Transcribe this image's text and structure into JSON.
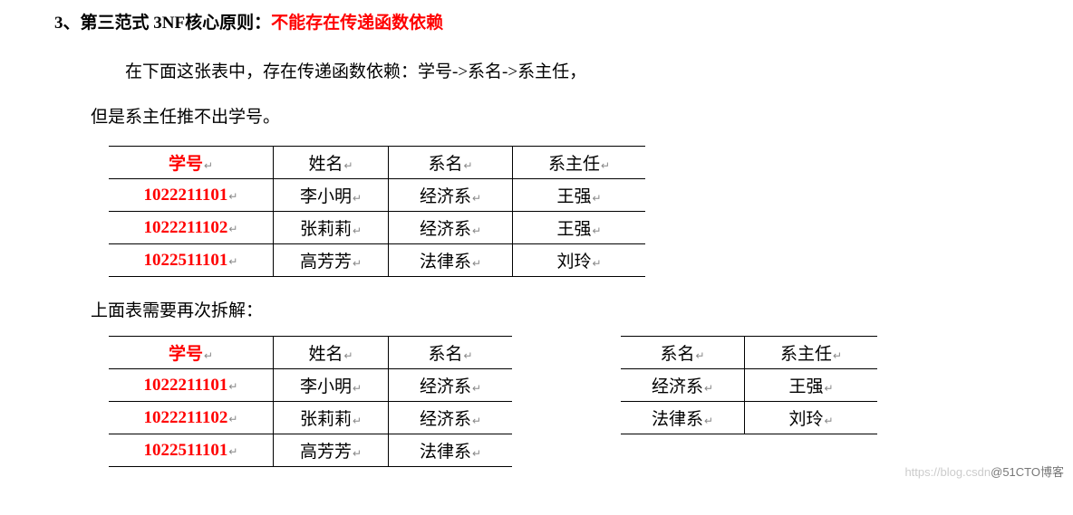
{
  "heading": {
    "index": "3、",
    "black": "第三范式 3NF核心原则：",
    "red": "不能存在传递函数依赖"
  },
  "para1_line1": "在下面这张表中，存在传递函数依赖：学号->系名->系主任，",
  "para1_line2": "但是系主任推不出学号。",
  "mid_label": "上面表需要再次拆解：",
  "marker": "↵",
  "table1": {
    "headers": [
      "学号",
      "姓名",
      "系名",
      "系主任"
    ],
    "rows": [
      [
        "1022211101",
        "李小明",
        "经济系",
        "王强"
      ],
      [
        "1022211102",
        "张莉莉",
        "经济系",
        "王强"
      ],
      [
        "1022511101",
        "高芳芳",
        "法律系",
        "刘玲"
      ]
    ]
  },
  "table2": {
    "headers": [
      "学号",
      "姓名",
      "系名"
    ],
    "rows": [
      [
        "1022211101",
        "李小明",
        "经济系"
      ],
      [
        "1022211102",
        "张莉莉",
        "经济系"
      ],
      [
        "1022511101",
        "高芳芳",
        "法律系"
      ]
    ]
  },
  "table3": {
    "headers": [
      "系名",
      "系主任"
    ],
    "rows": [
      [
        "经济系",
        "王强"
      ],
      [
        "法律系",
        "刘玲"
      ]
    ]
  },
  "watermark_light": "https://blog.csdn",
  "watermark_dark": "@51CTO博客"
}
